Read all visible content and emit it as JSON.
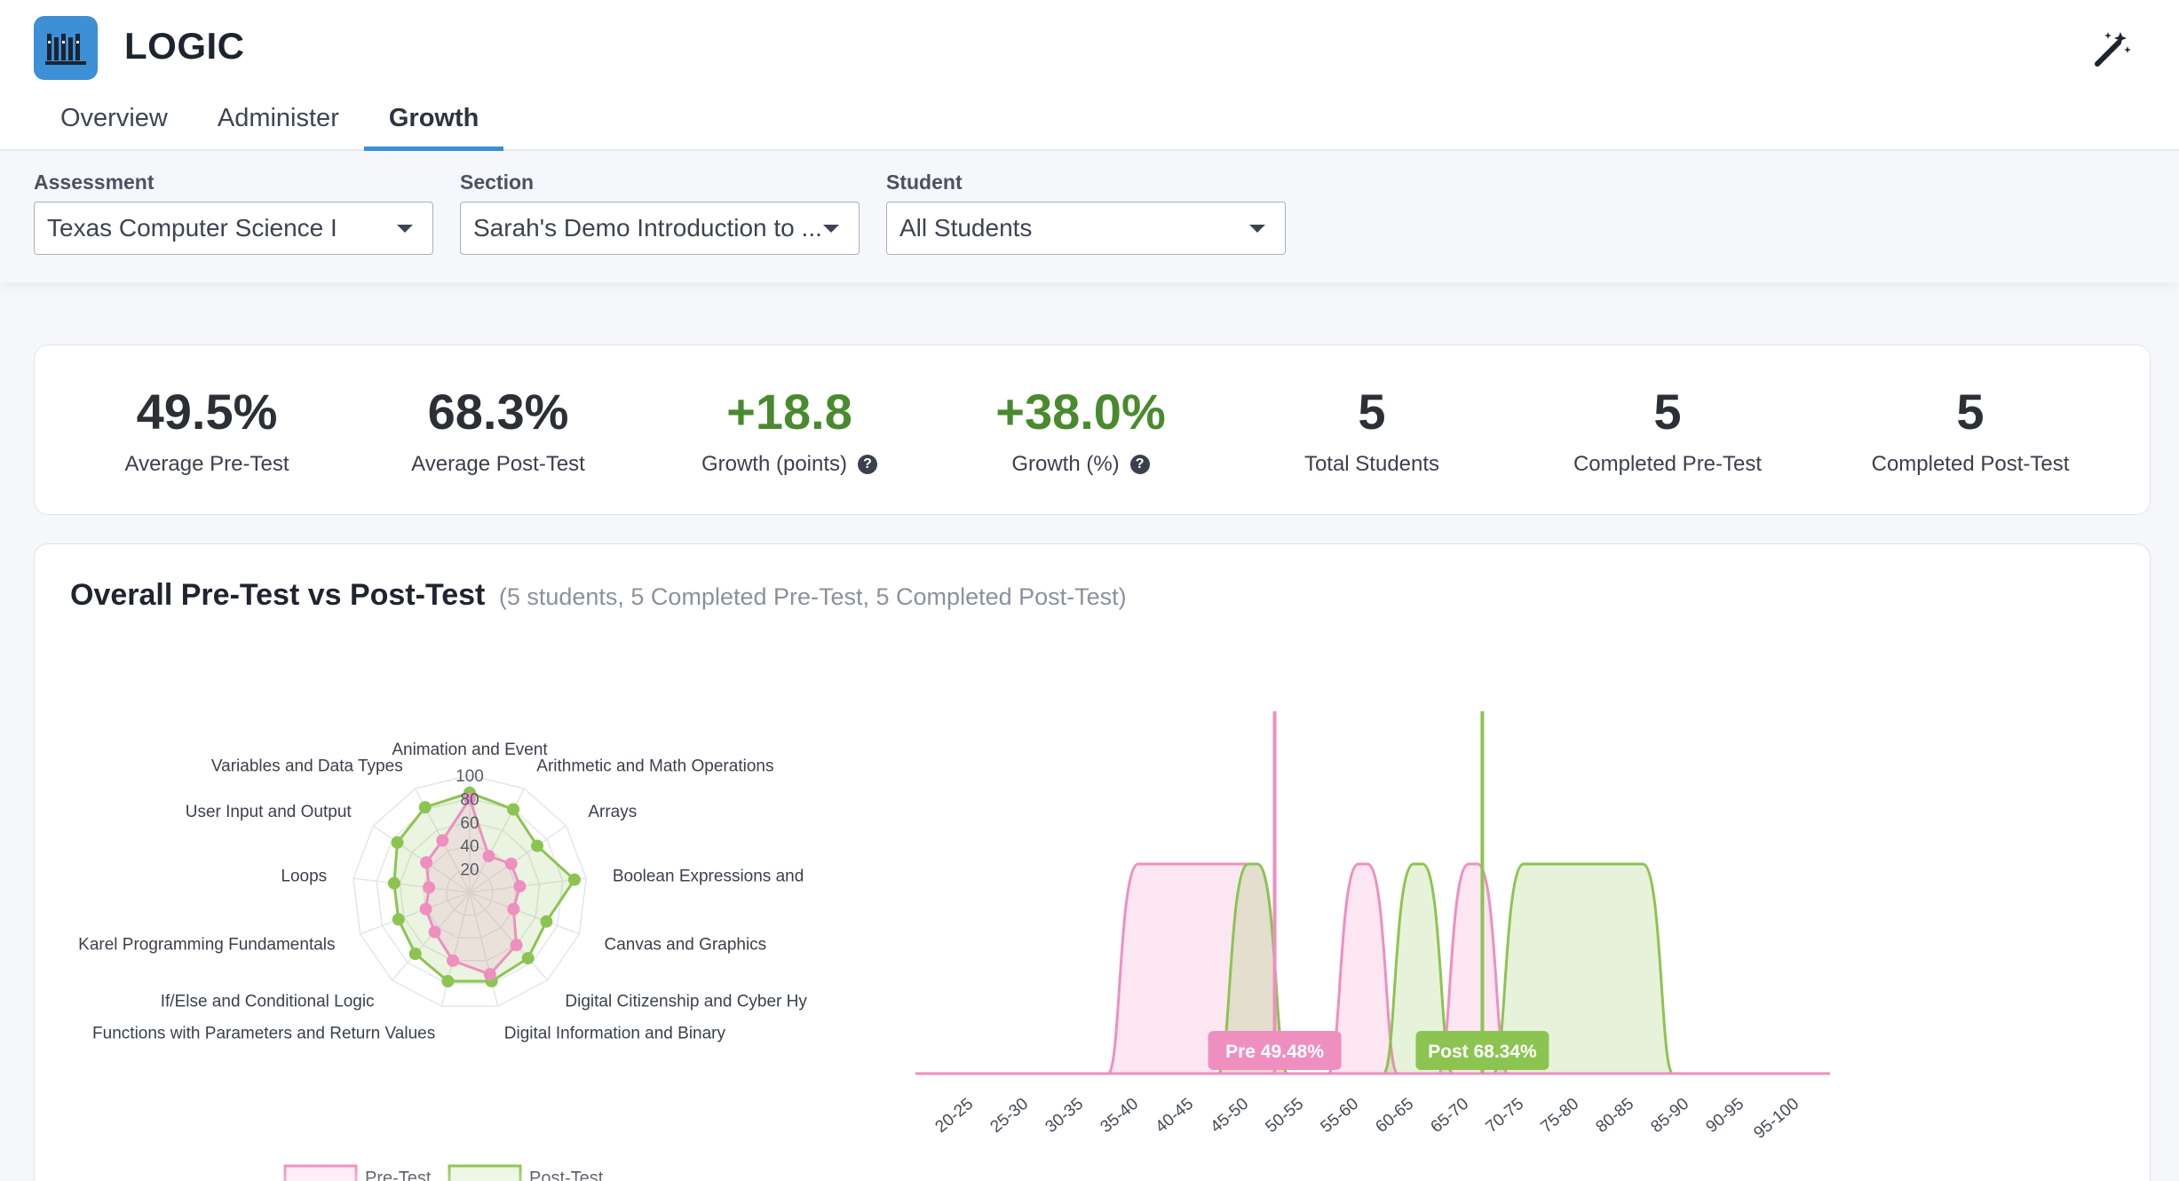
{
  "app": {
    "title": "LOGIC",
    "logo_icon": "books-icon",
    "magic_icon": "magic-wand-icon",
    "accent": "#3d8fd6"
  },
  "tabs": [
    {
      "label": "Overview",
      "active": false
    },
    {
      "label": "Administer",
      "active": false
    },
    {
      "label": "Growth",
      "active": true
    }
  ],
  "filters": {
    "assessment": {
      "label": "Assessment",
      "value": "Texas Computer Science I"
    },
    "section": {
      "label": "Section",
      "value": "Sarah's Demo Introduction to ..."
    },
    "student": {
      "label": "Student",
      "value": "All Students"
    }
  },
  "stats": [
    {
      "value": "49.5%",
      "label": "Average Pre-Test",
      "green": false,
      "help": false
    },
    {
      "value": "68.3%",
      "label": "Average Post-Test",
      "green": false,
      "help": false
    },
    {
      "value": "+18.8",
      "label": "Growth (points)",
      "green": true,
      "help": true
    },
    {
      "value": "+38.0%",
      "label": "Growth (%)",
      "green": true,
      "help": true
    },
    {
      "value": "5",
      "label": "Total Students",
      "green": false,
      "help": false
    },
    {
      "value": "5",
      "label": "Completed Pre-Test",
      "green": false,
      "help": false
    },
    {
      "value": "5",
      "label": "Completed Post-Test",
      "green": false,
      "help": false
    }
  ],
  "chart_section": {
    "title": "Overall Pre-Test vs Post-Test",
    "subtitle": "(5 students, 5 Completed Pre-Test, 5 Completed Post-Test)"
  },
  "chart_data": [
    {
      "type": "radar",
      "axes": [
        "Animation and Event",
        "Arithmetic and Math Operations",
        "Arrays",
        "Boolean Expressions and",
        "Canvas and Graphics",
        "Digital Citizenship and Cyber Hy",
        "Digital Information and Binary",
        "Functions with Parameters and Return Values",
        "If/Else and Conditional Logic",
        "Karel Programming Fundamentals",
        "Loops",
        "User Input and Output",
        "Variables and Data Types"
      ],
      "ticks": [
        "20",
        "40",
        "60",
        "80",
        "100"
      ],
      "rmax": 100,
      "series": [
        {
          "name": "Pre-Test",
          "color": "#ee8fc0",
          "values": [
            80,
            35,
            43,
            43,
            40,
            60,
            72,
            60,
            45,
            40,
            35,
            45,
            50
          ]
        },
        {
          "name": "Post-Test",
          "color": "#8cc451",
          "values": [
            85,
            80,
            70,
            90,
            70,
            75,
            78,
            78,
            70,
            65,
            65,
            75,
            82
          ]
        }
      ],
      "legend": "bottom"
    },
    {
      "type": "area",
      "categories": [
        "20-25",
        "25-30",
        "30-35",
        "35-40",
        "40-45",
        "45-50",
        "50-55",
        "55-60",
        "60-65",
        "65-70",
        "70-75",
        "75-80",
        "80-85",
        "85-90",
        "90-95",
        "95-100"
      ],
      "series": [
        {
          "name": "Pre-Test",
          "color": "#ee8fc0",
          "values": [
            0,
            0,
            0,
            1,
            1,
            1,
            0,
            1,
            0,
            1,
            0,
            0,
            0,
            0,
            0,
            0
          ]
        },
        {
          "name": "Post-Test",
          "color": "#8cc451",
          "values": [
            0,
            0,
            0,
            0,
            0,
            1,
            0,
            0,
            1,
            0,
            1,
            1,
            1,
            0,
            0,
            0
          ]
        }
      ],
      "markers": [
        {
          "label": "Pre 49.48%",
          "value": 49.48,
          "color": "#ee8fc0"
        },
        {
          "label": "Post 68.34%",
          "value": 68.34,
          "color": "#8cc451"
        }
      ]
    }
  ]
}
